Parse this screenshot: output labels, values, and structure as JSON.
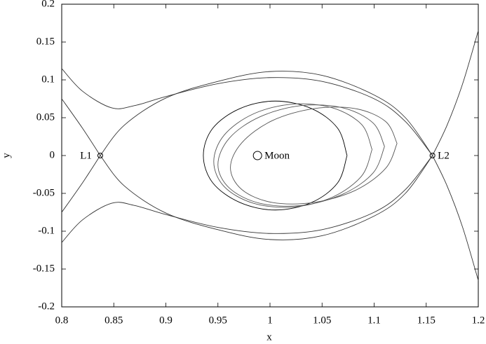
{
  "chart_data": {
    "type": "line",
    "xlabel": "x",
    "ylabel": "y",
    "xlim": [
      0.8,
      1.2
    ],
    "ylim": [
      -0.2,
      0.2
    ],
    "xticks": [
      0.8,
      0.85,
      0.9,
      0.95,
      1,
      1.05,
      1.1,
      1.15,
      1.2
    ],
    "yticks": [
      -0.2,
      -0.15,
      -0.1,
      -0.05,
      0,
      0.05,
      0.1,
      0.15,
      0.2
    ],
    "series": [
      {
        "color": "#000000",
        "x": [
          1.074,
          1.065,
          1.04,
          1.005,
          0.971,
          0.945,
          0.936,
          0.945,
          0.971,
          1.005,
          1.04,
          1.065,
          1.074
        ],
        "values": [
          0,
          0.036,
          0.062,
          0.072,
          0.062,
          0.036,
          0,
          -0.036,
          -0.062,
          -0.072,
          -0.062,
          -0.036,
          0
        ]
      },
      {
        "color": "#555555",
        "x": [
          1.11,
          1.099,
          1.07,
          1.03,
          0.99,
          0.961,
          0.95,
          0.961,
          0.99,
          1.03,
          1.07,
          1.099,
          1.11
        ],
        "values": [
          0.012,
          0.043,
          0.063,
          0.066,
          0.051,
          0.023,
          -0.012,
          -0.043,
          -0.063,
          -0.066,
          -0.051,
          -0.023,
          0.012
        ]
      },
      {
        "color": "#555555",
        "x": [
          1.122,
          1.111,
          1.082,
          1.042,
          1.002,
          0.973,
          0.962,
          0.973,
          1.002,
          1.042,
          1.082,
          1.111,
          1.122
        ],
        "values": [
          0.016,
          0.045,
          0.062,
          0.062,
          0.046,
          0.017,
          -0.016,
          -0.045,
          -0.062,
          -0.062,
          -0.046,
          -0.017,
          0.016
        ]
      },
      {
        "color": "#555555",
        "x": [
          1.098,
          1.088,
          1.06,
          1.022,
          0.984,
          0.956,
          0.946,
          0.956,
          0.984,
          1.022,
          1.06,
          1.088,
          1.098
        ],
        "values": [
          0.008,
          0.041,
          0.063,
          0.068,
          0.055,
          0.027,
          -0.008,
          -0.041,
          -0.063,
          -0.068,
          -0.055,
          -0.027,
          0.008
        ]
      },
      {
        "color": "#333333",
        "x": [
          0.837,
          0.86,
          0.9,
          0.95,
          1.0,
          1.05,
          1.1,
          1.13,
          1.156
        ],
        "values": [
          0,
          0.04,
          0.076,
          0.098,
          0.111,
          0.106,
          0.08,
          0.05,
          0
        ]
      },
      {
        "color": "#333333",
        "x": [
          0.837,
          0.86,
          0.9,
          0.95,
          1.0,
          1.05,
          1.1,
          1.13,
          1.156
        ],
        "values": [
          0,
          -0.04,
          -0.076,
          -0.098,
          -0.111,
          -0.106,
          -0.08,
          -0.05,
          0
        ]
      },
      {
        "color": "#333333",
        "x": [
          0.8,
          0.82,
          0.848,
          0.87,
          0.9,
          0.95,
          1.0,
          1.05,
          1.1,
          1.13,
          1.156
        ],
        "values": [
          0.115,
          0.085,
          0.063,
          0.066,
          0.078,
          0.095,
          0.103,
          0.098,
          0.075,
          0.045,
          0
        ]
      },
      {
        "color": "#333333",
        "x": [
          0.8,
          0.82,
          0.848,
          0.87,
          0.9,
          0.95,
          1.0,
          1.05,
          1.1,
          1.13,
          1.156
        ],
        "values": [
          -0.115,
          -0.085,
          -0.063,
          -0.066,
          -0.078,
          -0.095,
          -0.103,
          -0.098,
          -0.075,
          -0.045,
          0
        ]
      },
      {
        "color": "#333333",
        "x": [
          0.8,
          0.82,
          0.837
        ],
        "values": [
          0.075,
          0.036,
          0
        ]
      },
      {
        "color": "#333333",
        "x": [
          0.8,
          0.82,
          0.837
        ],
        "values": [
          -0.075,
          -0.036,
          0
        ]
      },
      {
        "color": "#333333",
        "x": [
          1.156,
          1.17,
          1.185,
          1.2
        ],
        "values": [
          0,
          0.04,
          0.095,
          0.165
        ]
      },
      {
        "color": "#333333",
        "x": [
          1.156,
          1.17,
          1.185,
          1.2
        ],
        "values": [
          0,
          -0.04,
          -0.095,
          -0.165
        ]
      }
    ],
    "points": [
      {
        "label": "L1",
        "x": 0.837,
        "y": 0
      },
      {
        "label": "Moon",
        "x": 0.988,
        "y": 0
      },
      {
        "label": "L2",
        "x": 1.156,
        "y": 0
      }
    ]
  }
}
